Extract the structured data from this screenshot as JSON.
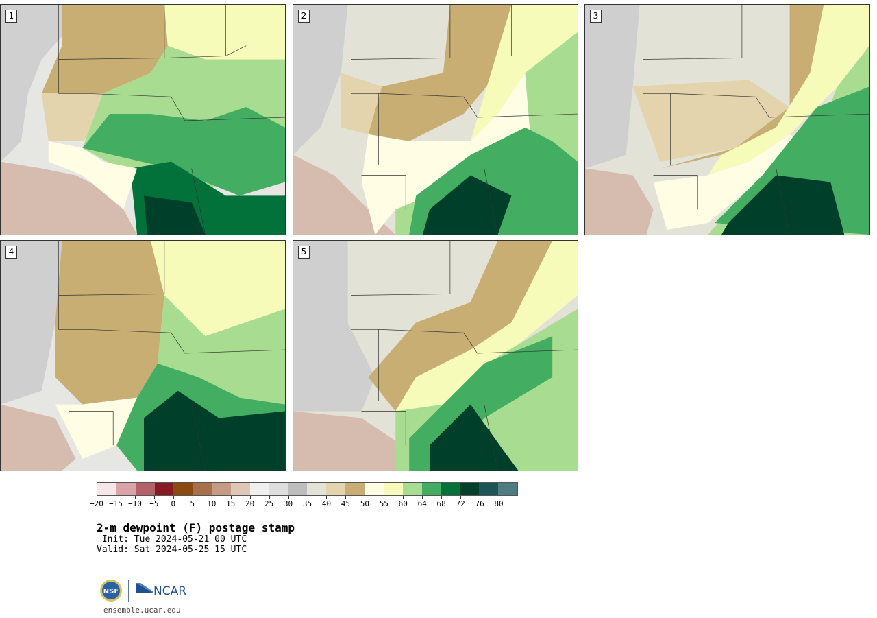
{
  "panels": [
    {
      "label": "1"
    },
    {
      "label": "2"
    },
    {
      "label": "3"
    },
    {
      "label": "4"
    },
    {
      "label": "5"
    }
  ],
  "colorbar": {
    "colors": [
      "#f5e6ea",
      "#d8a3a9",
      "#b3616b",
      "#861b26",
      "#8b4a12",
      "#a86f4b",
      "#c69a84",
      "#e0c6b6",
      "#f0efef",
      "#dedede",
      "#bdbdbd",
      "#e3e2d6",
      "#e3d4ad",
      "#c9ae74",
      "#fffde3",
      "#f7fbb9",
      "#a8dc90",
      "#43ad62",
      "#03713a",
      "#003f2a",
      "#1c5457",
      "#4f7b82"
    ],
    "labels": [
      "−20",
      "−15",
      "−10",
      "−5",
      "0",
      "5",
      "10",
      "15",
      "20",
      "25",
      "30",
      "35",
      "40",
      "45",
      "50",
      "55",
      "60",
      "64",
      "68",
      "72",
      "76",
      "80"
    ]
  },
  "title": "2-m dewpoint (F) postage stamp",
  "init": " Init: Tue 2024-05-21 00 UTC",
  "valid": "Valid: Sat 2024-05-25 15 UTC",
  "logos": {
    "nsf": "NSF",
    "ncar": "NCAR"
  },
  "site": "ensemble.ucar.edu"
}
